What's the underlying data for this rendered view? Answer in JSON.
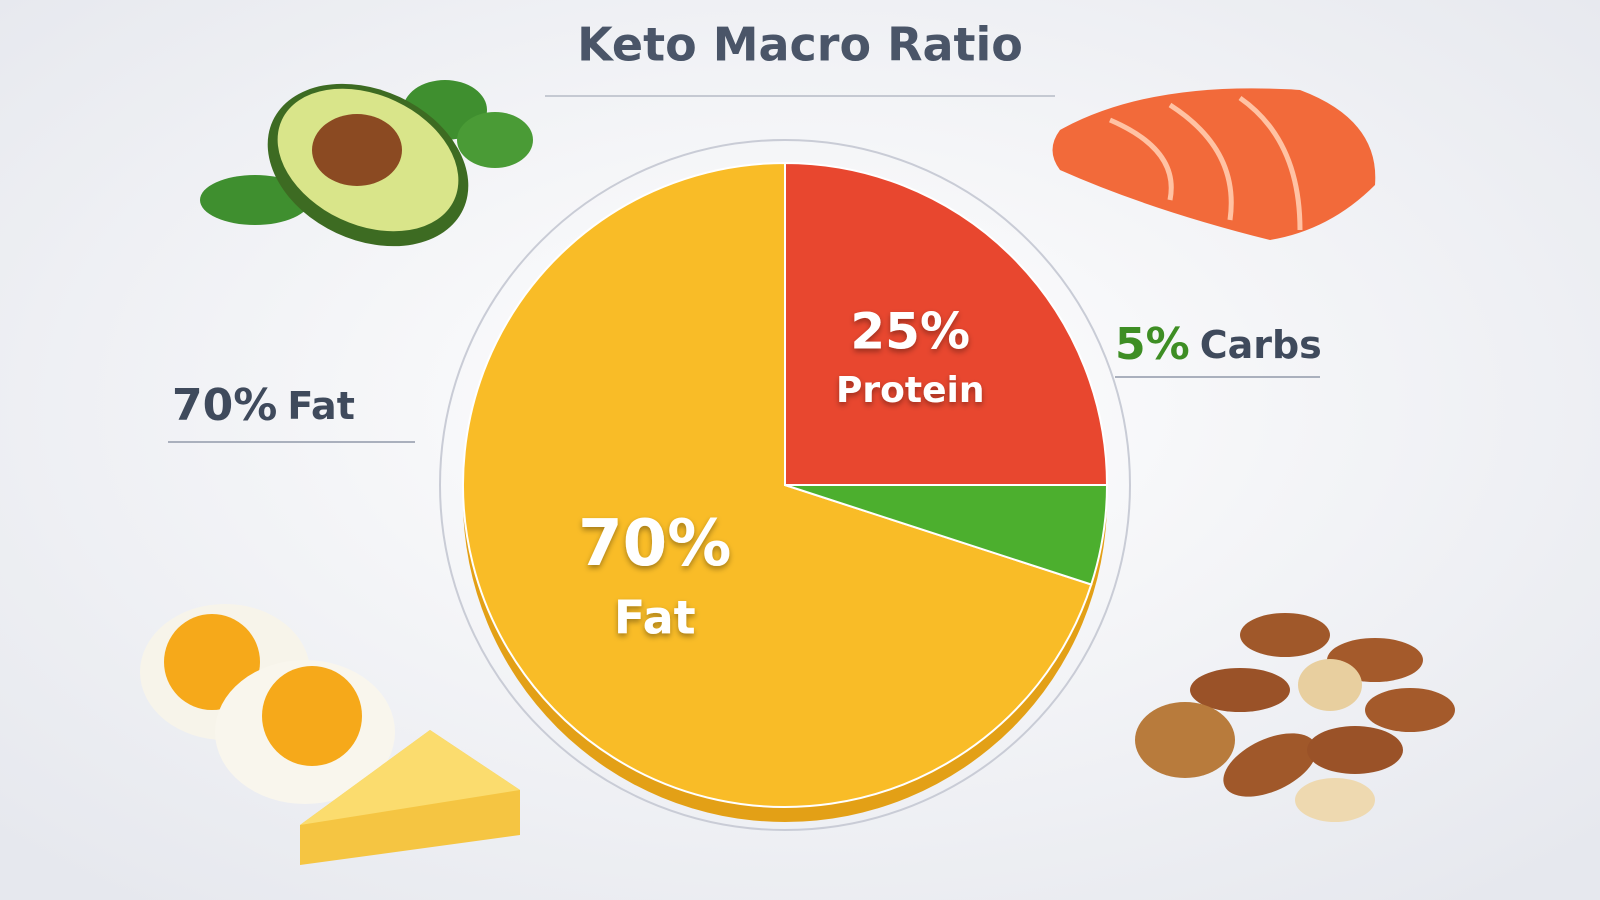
{
  "chart_data": {
    "type": "pie",
    "title": "Keto Macro Ratio",
    "categories": [
      "Fat",
      "Protein",
      "Carbs"
    ],
    "values": [
      70,
      25,
      5
    ],
    "value_labels": [
      "70%",
      "25%",
      "5%"
    ],
    "colors": [
      "#f9bc27",
      "#e8472f",
      "#4caf2e"
    ]
  }
}
